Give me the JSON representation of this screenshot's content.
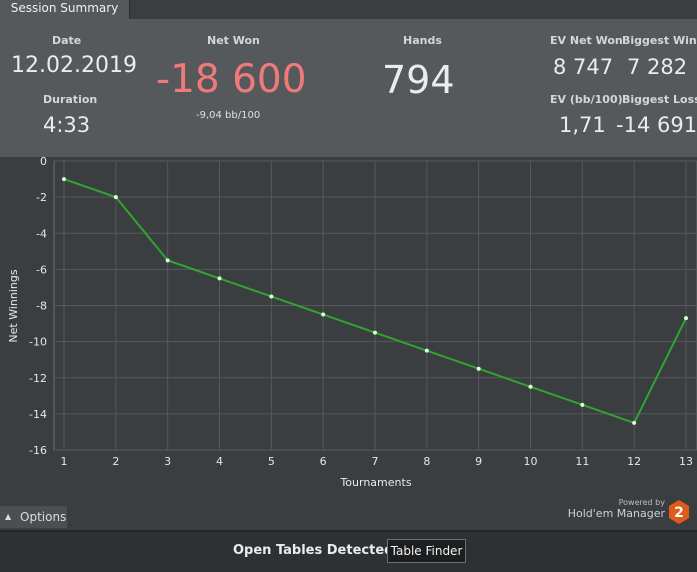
{
  "tab": {
    "label": "Session Summary"
  },
  "stats": {
    "date": {
      "label": "Date",
      "value": "12.02.2019"
    },
    "duration": {
      "label": "Duration",
      "value": "4:33"
    },
    "net_won": {
      "label": "Net Won",
      "value": "-18 600",
      "sub": "-9,04 bb/100",
      "color": "#f07a7a"
    },
    "hands": {
      "label": "Hands",
      "value": "794"
    },
    "ev_net_won": {
      "label": "EV Net Won",
      "value": "8 747"
    },
    "biggest_win": {
      "label": "Biggest Win",
      "value": "7 282"
    },
    "ev_bb100": {
      "label": "EV (bb/100)",
      "value": "1,71"
    },
    "biggest_loss": {
      "label": "Biggest Loss",
      "value": "-14 691"
    }
  },
  "chart_data": {
    "type": "line",
    "xlabel": "Tournaments",
    "ylabel": "Net Winnings",
    "x": [
      1,
      2,
      3,
      4,
      5,
      6,
      7,
      8,
      9,
      10,
      11,
      12,
      13
    ],
    "series": [
      {
        "values": [
          -1,
          -2,
          -5.5,
          -6.5,
          -7.5,
          -8.5,
          -9.5,
          -10.5,
          -11.5,
          -12.5,
          -13.5,
          -14.5,
          -8.7
        ],
        "color": "#2ea52e"
      }
    ],
    "xlim": [
      1,
      13
    ],
    "ylim": [
      -16,
      0
    ],
    "yticks": [
      0,
      -2,
      -4,
      -6,
      -8,
      -10,
      -12,
      -14,
      -16
    ],
    "grid": true
  },
  "options": {
    "label": "Options"
  },
  "branding": {
    "powered": "Powered by",
    "product": "Hold'em Manager",
    "badge": "2"
  },
  "footer": {
    "status": "Open Tables Detected",
    "button": "Table Finder"
  }
}
